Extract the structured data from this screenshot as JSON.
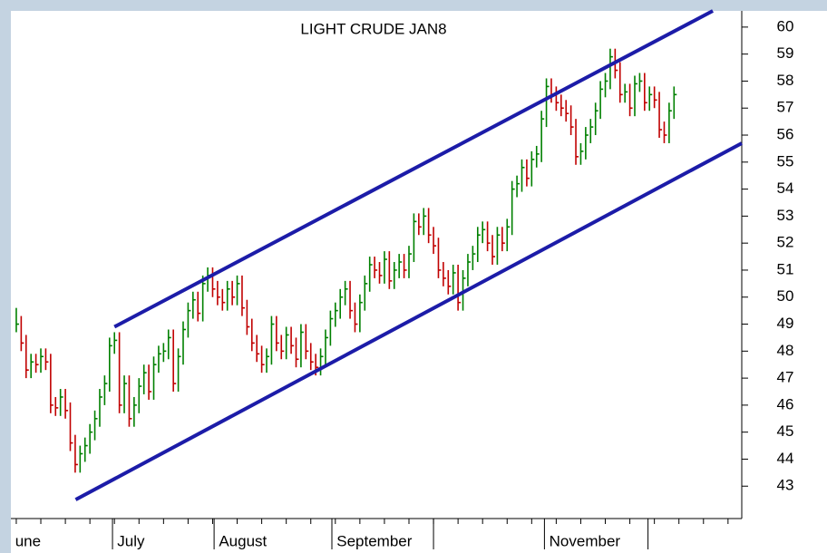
{
  "chart_data": {
    "type": "hlc",
    "title": "LIGHT CRUDE JAN8",
    "up_color": "#008000",
    "down_color": "#c00000",
    "channel_color": "#1c1ca8",
    "xlim": [
      -1.1,
      147.8
    ],
    "ylim": [
      41.8,
      60.6
    ],
    "yticks": [
      43,
      44,
      45,
      46,
      47,
      48,
      49,
      50,
      51,
      52,
      53,
      54,
      55,
      56,
      57,
      58,
      59,
      60
    ],
    "xticks": [
      19.6,
      40.3,
      64.3,
      85,
      107.6,
      128.7
    ],
    "month_labels": [
      {
        "value": -0.6,
        "label": "une"
      },
      {
        "value": 20.2,
        "label": "July"
      },
      {
        "value": 40.9,
        "label": "August"
      },
      {
        "value": 64.9,
        "label": "September"
      },
      {
        "value": 108.2,
        "label": "November"
      }
    ],
    "high": [
      49.6,
      49.3,
      48.6,
      47.9,
      47.9,
      48.1,
      48.1,
      47.9,
      46.3,
      46.6,
      46.6,
      46.1,
      44.9,
      44.5,
      44.8,
      45.3,
      45.8,
      46.6,
      47.1,
      48.5,
      48.7,
      48.7,
      47.1,
      47.1,
      46.3,
      47.0,
      47.5,
      47.5,
      47.8,
      48.2,
      48.3,
      48.8,
      48.8,
      48.1,
      49.1,
      49.8,
      50.2,
      50.2,
      50.8,
      51.1,
      51.1,
      50.6,
      50.3,
      50.6,
      50.6,
      50.8,
      50.8,
      49.9,
      49.2,
      48.6,
      48.2,
      48.1,
      49.3,
      49.3,
      48.6,
      48.9,
      48.9,
      48.5,
      49.0,
      49.0,
      48.3,
      47.9,
      48.1,
      48.8,
      49.5,
      49.8,
      50.3,
      50.6,
      50.6,
      49.8,
      50.1,
      50.8,
      51.5,
      51.5,
      51.3,
      51.7,
      51.7,
      51.3,
      51.6,
      51.6,
      51.9,
      53.1,
      53.1,
      53.3,
      53.3,
      52.6,
      52.2,
      51.3,
      51.0,
      51.2,
      51.2,
      51.0,
      51.6,
      51.9,
      52.6,
      52.8,
      52.8,
      52.3,
      52.6,
      52.6,
      52.9,
      54.3,
      54.5,
      55.1,
      55.1,
      55.4,
      55.6,
      56.9,
      58.1,
      58.1,
      57.8,
      57.5,
      57.3,
      57.1,
      56.6,
      55.7,
      56.3,
      56.6,
      57.2,
      58.0,
      58.3,
      59.2,
      59.2,
      58.7,
      57.9,
      57.9,
      58.2,
      58.3,
      58.3,
      57.8,
      57.8,
      57.6,
      56.5,
      57.2,
      57.8
    ],
    "low": [
      48.7,
      48.0,
      47.0,
      47.0,
      47.2,
      47.2,
      47.3,
      45.7,
      45.6,
      45.6,
      45.5,
      44.3,
      43.5,
      43.5,
      43.9,
      44.2,
      44.7,
      45.2,
      46.0,
      46.5,
      47.9,
      45.7,
      45.7,
      45.2,
      45.2,
      45.7,
      46.4,
      46.2,
      46.2,
      47.2,
      47.6,
      47.7,
      46.5,
      46.5,
      47.5,
      48.5,
      49.2,
      49.1,
      49.1,
      50.2,
      50.0,
      49.7,
      49.5,
      49.5,
      49.7,
      49.7,
      49.3,
      48.6,
      48.0,
      47.6,
      47.2,
      47.2,
      47.5,
      48.0,
      47.7,
      47.7,
      47.9,
      47.4,
      47.4,
      47.7,
      47.3,
      47.1,
      47.1,
      47.5,
      48.2,
      48.9,
      49.2,
      49.7,
      49.2,
      48.7,
      48.7,
      49.5,
      50.2,
      50.7,
      50.5,
      50.5,
      50.3,
      50.3,
      50.7,
      50.7,
      50.7,
      51.3,
      52.3,
      52.3,
      52.0,
      51.6,
      50.7,
      50.4,
      50.1,
      50.1,
      49.5,
      49.5,
      50.4,
      51.0,
      51.3,
      52.0,
      51.7,
      51.2,
      51.2,
      51.7,
      51.7,
      52.3,
      53.7,
      53.9,
      54.1,
      54.1,
      54.8,
      55.0,
      56.3,
      57.2,
      56.9,
      56.7,
      56.5,
      56.0,
      54.9,
      54.9,
      55.1,
      55.7,
      56.0,
      56.6,
      57.4,
      57.7,
      58.1,
      57.2,
      57.2,
      56.7,
      56.7,
      57.6,
      56.9,
      56.9,
      57.0,
      55.9,
      55.7,
      55.7,
      56.6
    ],
    "close": [
      49.0,
      48.3,
      47.3,
      47.6,
      47.5,
      47.8,
      47.6,
      46.0,
      45.9,
      46.3,
      45.8,
      44.6,
      43.8,
      44.2,
      44.5,
      45.0,
      45.5,
      46.3,
      46.8,
      48.2,
      48.4,
      46.0,
      46.8,
      45.5,
      46.0,
      46.7,
      47.2,
      46.5,
      47.5,
      47.9,
      48.0,
      48.5,
      46.8,
      47.8,
      48.8,
      49.5,
      49.9,
      49.4,
      50.5,
      50.8,
      50.3,
      50.0,
      49.8,
      50.3,
      50.0,
      50.5,
      49.6,
      48.9,
      48.3,
      47.9,
      47.5,
      47.8,
      49.0,
      48.3,
      48.0,
      48.6,
      48.2,
      47.7,
      48.7,
      48.0,
      47.6,
      47.4,
      47.8,
      48.5,
      49.2,
      49.5,
      50.0,
      50.3,
      49.5,
      49.0,
      49.8,
      50.5,
      51.2,
      51.0,
      50.8,
      51.4,
      50.6,
      51.0,
      51.3,
      51.0,
      51.6,
      52.8,
      52.6,
      53.0,
      52.3,
      51.9,
      51.0,
      50.7,
      50.4,
      50.9,
      49.8,
      50.7,
      51.3,
      51.6,
      52.3,
      52.5,
      52.0,
      51.5,
      52.3,
      52.0,
      52.6,
      54.0,
      54.2,
      54.8,
      54.4,
      55.1,
      55.3,
      56.6,
      57.8,
      57.5,
      57.2,
      57.0,
      56.8,
      56.3,
      55.2,
      55.4,
      56.0,
      56.3,
      56.9,
      57.7,
      58.0,
      58.9,
      58.4,
      57.5,
      57.6,
      57.0,
      57.9,
      58.0,
      57.2,
      57.5,
      57.3,
      56.2,
      56.0,
      56.9,
      57.5
    ],
    "channel": [
      {
        "x": [
          20,
          141.9
        ],
        "y": [
          48.9,
          60.6
        ]
      },
      {
        "x": [
          12.1,
          147.8
        ],
        "y": [
          42.5,
          55.7
        ]
      }
    ]
  }
}
